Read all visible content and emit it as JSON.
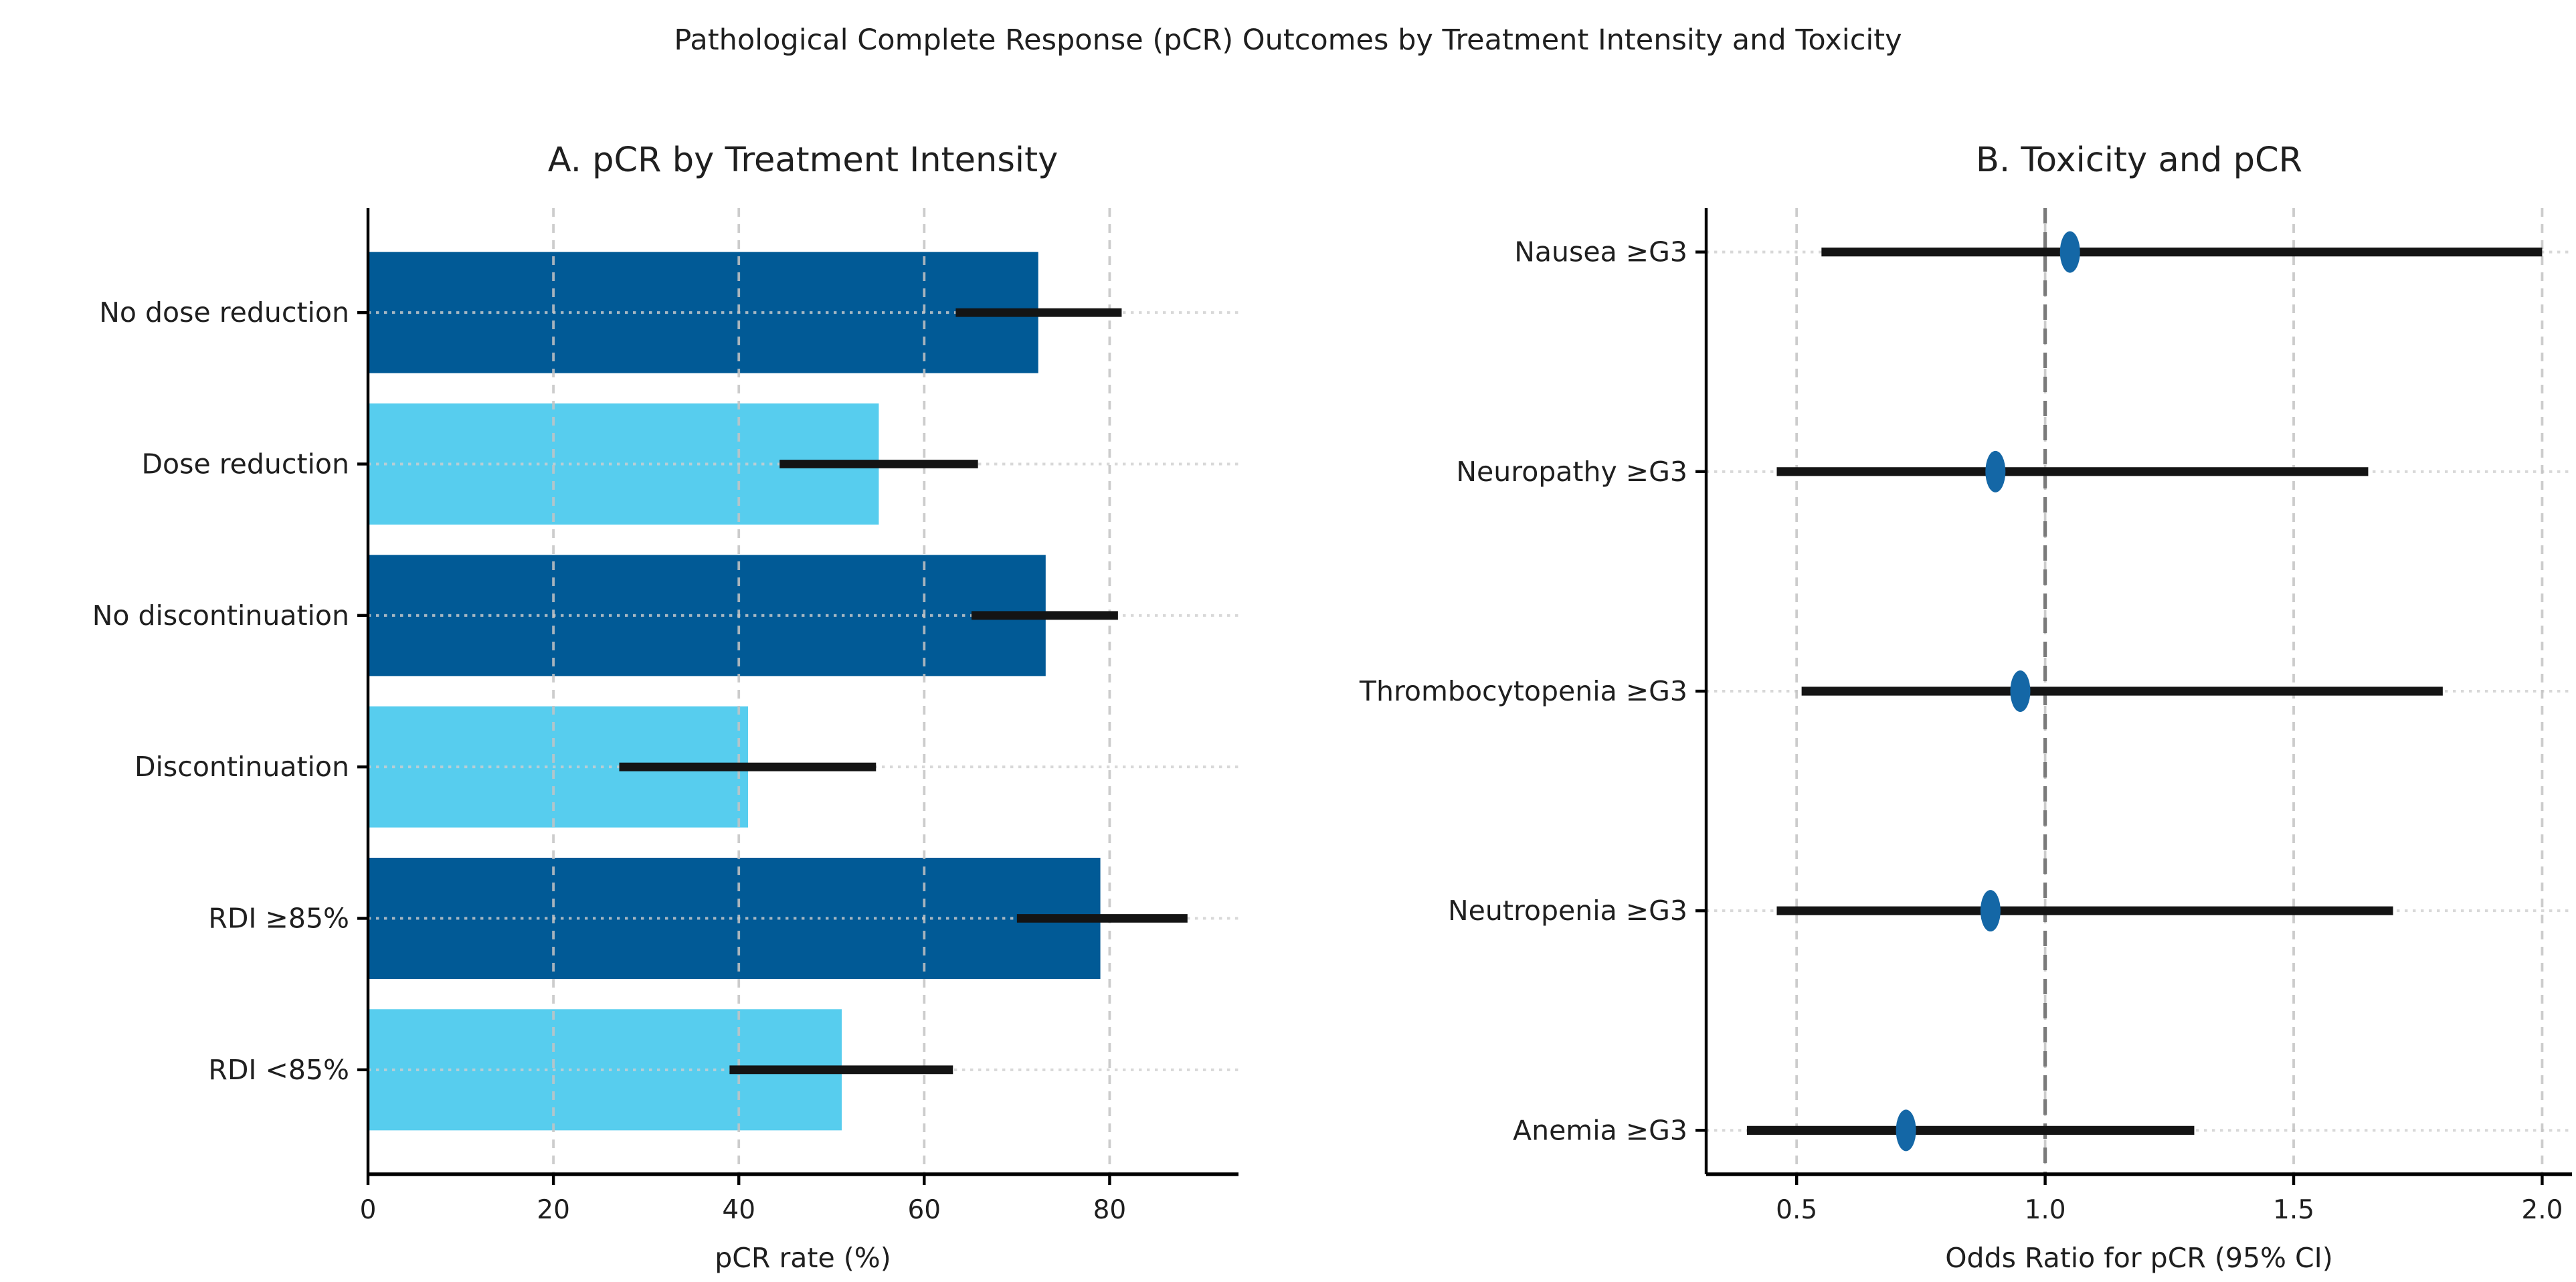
{
  "figure": {
    "suptitle": "Pathological Complete Response (pCR) Outcomes by Treatment Intensity and Toxicity",
    "background": "#ffffff"
  },
  "colors": {
    "bar_dark": "#015a96",
    "bar_light": "#57cdee",
    "marker": "#1467a6",
    "error_bar": "#141414",
    "grid": "#c4c4c4",
    "row_guide": "#cfcfcf",
    "reference_line": "#7a7a7a",
    "spine": "#000000",
    "text": "#1f1f1f"
  },
  "chart_data": [
    {
      "id": "panel_a",
      "type": "bar",
      "orientation": "horizontal",
      "title": "A. pCR by Treatment Intensity",
      "categories": [
        "No dose reduction",
        "Dose reduction",
        "No discontinuation",
        "Discontinuation",
        "RDI ≥85%",
        "RDI <85%"
      ],
      "values": [
        72.3,
        55.1,
        73.1,
        41.0,
        79.0,
        51.1
      ],
      "ci_low": [
        63.4,
        44.4,
        65.1,
        27.1,
        70.0,
        39.0
      ],
      "ci_high": [
        81.3,
        65.8,
        80.9,
        54.8,
        88.4,
        63.1
      ],
      "bar_color_keys": [
        "bar_dark",
        "bar_light",
        "bar_dark",
        "bar_light",
        "bar_dark",
        "bar_light"
      ],
      "xlabel": "pCR rate (%)",
      "xticks": [
        0,
        20,
        40,
        60,
        80
      ],
      "xtick_labels": [
        "0",
        "20",
        "40",
        "60",
        "80"
      ],
      "xlim": [
        0,
        93.9
      ],
      "bar_height_frac": 0.8,
      "grid": "vertical-dashed and horizontal-dotted row guides",
      "legend": null
    },
    {
      "id": "panel_b",
      "type": "scatter",
      "subtype": "forest-plot",
      "title": "B. Toxicity and pCR",
      "categories": [
        "Nausea ≥G3",
        "Neuropathy ≥G3",
        "Thrombocytopenia ≥G3",
        "Neutropenia ≥G3",
        "Anemia ≥G3"
      ],
      "odds_ratio": [
        1.05,
        0.9,
        0.95,
        0.89,
        0.72
      ],
      "ci_low": [
        0.55,
        0.46,
        0.51,
        0.46,
        0.4
      ],
      "ci_high": [
        2.0,
        1.65,
        1.8,
        1.7,
        1.3
      ],
      "reference_line": 1.0,
      "xlabel": "Odds Ratio for pCR (95% CI)",
      "xticks": [
        0.5,
        1.0,
        1.5,
        2.0
      ],
      "xtick_labels": [
        "0.5",
        "1.0",
        "1.5",
        "2.0"
      ],
      "xlim": [
        0.318,
        2.06
      ],
      "grid": "vertical-dashed and horizontal-dotted row guides",
      "legend": null
    }
  ]
}
